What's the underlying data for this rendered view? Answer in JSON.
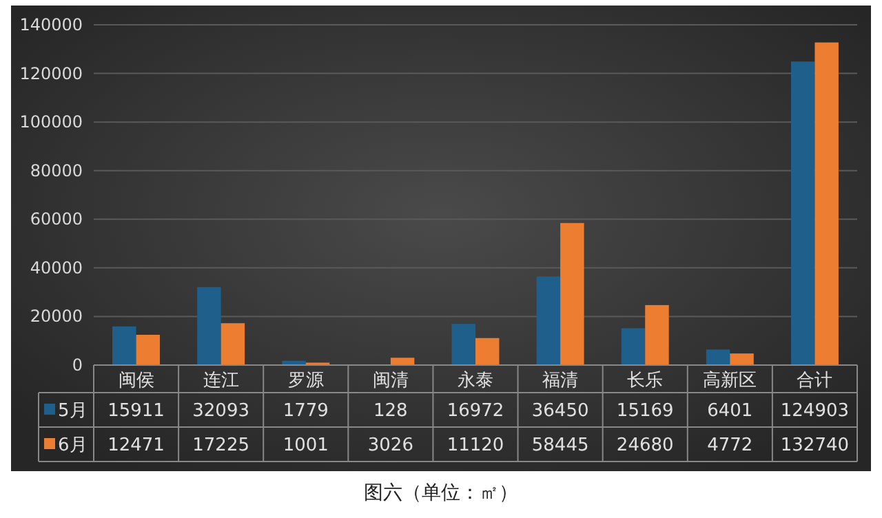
{
  "chart_data": {
    "type": "bar",
    "categories": [
      "闽侯",
      "连江",
      "罗源",
      "闽清",
      "永泰",
      "福清",
      "长乐",
      "高新区",
      "合计"
    ],
    "series": [
      {
        "name": "5月",
        "color": "#1f5f8b",
        "values": [
          15911,
          32093,
          1779,
          128,
          16972,
          36450,
          15169,
          6401,
          124903
        ]
      },
      {
        "name": "6月",
        "color": "#ed7d31",
        "values": [
          12471,
          17225,
          1001,
          3026,
          11120,
          58445,
          24680,
          4772,
          132740
        ]
      }
    ],
    "ylim": [
      0,
      140000
    ],
    "yticks": [
      0,
      20000,
      40000,
      60000,
      80000,
      100000,
      120000,
      140000
    ],
    "grid": "y",
    "data_labels": true,
    "legend": "bottom",
    "annotations": [
      "图六（单位：㎡）"
    ]
  }
}
